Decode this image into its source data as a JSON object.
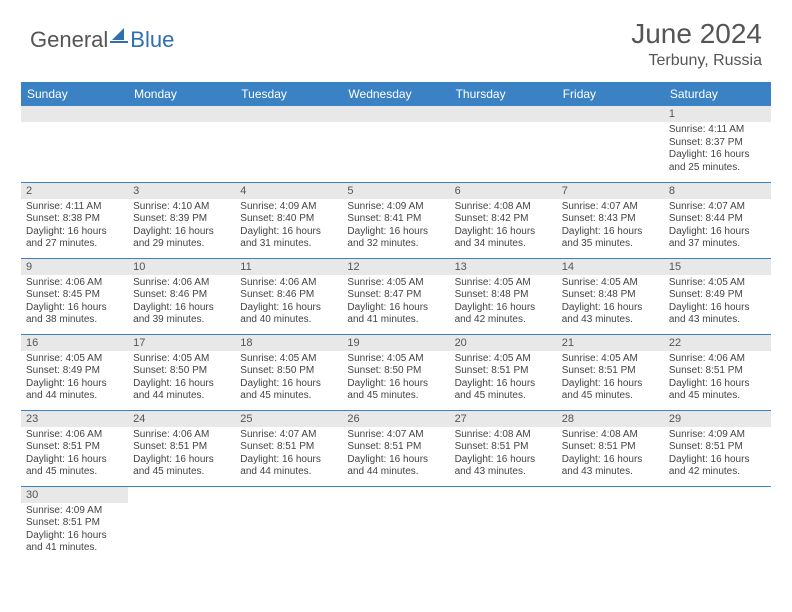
{
  "logo": {
    "gray": "General",
    "blue": "Blue"
  },
  "title": "June 2024",
  "location": "Terbuny, Russia",
  "colors": {
    "header_bg": "#3b82c4",
    "header_text": "#ffffff",
    "daynum_bg": "#e8e8e8",
    "border": "#3b82c4",
    "logo_gray": "#555555",
    "logo_blue": "#2f6fb0"
  },
  "day_headers": [
    "Sunday",
    "Monday",
    "Tuesday",
    "Wednesday",
    "Thursday",
    "Friday",
    "Saturday"
  ],
  "weeks": [
    [
      null,
      null,
      null,
      null,
      null,
      null,
      {
        "n": "1",
        "sr": "Sunrise: 4:11 AM",
        "ss": "Sunset: 8:37 PM",
        "dl": "Daylight: 16 hours and 25 minutes."
      }
    ],
    [
      {
        "n": "2",
        "sr": "Sunrise: 4:11 AM",
        "ss": "Sunset: 8:38 PM",
        "dl": "Daylight: 16 hours and 27 minutes."
      },
      {
        "n": "3",
        "sr": "Sunrise: 4:10 AM",
        "ss": "Sunset: 8:39 PM",
        "dl": "Daylight: 16 hours and 29 minutes."
      },
      {
        "n": "4",
        "sr": "Sunrise: 4:09 AM",
        "ss": "Sunset: 8:40 PM",
        "dl": "Daylight: 16 hours and 31 minutes."
      },
      {
        "n": "5",
        "sr": "Sunrise: 4:09 AM",
        "ss": "Sunset: 8:41 PM",
        "dl": "Daylight: 16 hours and 32 minutes."
      },
      {
        "n": "6",
        "sr": "Sunrise: 4:08 AM",
        "ss": "Sunset: 8:42 PM",
        "dl": "Daylight: 16 hours and 34 minutes."
      },
      {
        "n": "7",
        "sr": "Sunrise: 4:07 AM",
        "ss": "Sunset: 8:43 PM",
        "dl": "Daylight: 16 hours and 35 minutes."
      },
      {
        "n": "8",
        "sr": "Sunrise: 4:07 AM",
        "ss": "Sunset: 8:44 PM",
        "dl": "Daylight: 16 hours and 37 minutes."
      }
    ],
    [
      {
        "n": "9",
        "sr": "Sunrise: 4:06 AM",
        "ss": "Sunset: 8:45 PM",
        "dl": "Daylight: 16 hours and 38 minutes."
      },
      {
        "n": "10",
        "sr": "Sunrise: 4:06 AM",
        "ss": "Sunset: 8:46 PM",
        "dl": "Daylight: 16 hours and 39 minutes."
      },
      {
        "n": "11",
        "sr": "Sunrise: 4:06 AM",
        "ss": "Sunset: 8:46 PM",
        "dl": "Daylight: 16 hours and 40 minutes."
      },
      {
        "n": "12",
        "sr": "Sunrise: 4:05 AM",
        "ss": "Sunset: 8:47 PM",
        "dl": "Daylight: 16 hours and 41 minutes."
      },
      {
        "n": "13",
        "sr": "Sunrise: 4:05 AM",
        "ss": "Sunset: 8:48 PM",
        "dl": "Daylight: 16 hours and 42 minutes."
      },
      {
        "n": "14",
        "sr": "Sunrise: 4:05 AM",
        "ss": "Sunset: 8:48 PM",
        "dl": "Daylight: 16 hours and 43 minutes."
      },
      {
        "n": "15",
        "sr": "Sunrise: 4:05 AM",
        "ss": "Sunset: 8:49 PM",
        "dl": "Daylight: 16 hours and 43 minutes."
      }
    ],
    [
      {
        "n": "16",
        "sr": "Sunrise: 4:05 AM",
        "ss": "Sunset: 8:49 PM",
        "dl": "Daylight: 16 hours and 44 minutes."
      },
      {
        "n": "17",
        "sr": "Sunrise: 4:05 AM",
        "ss": "Sunset: 8:50 PM",
        "dl": "Daylight: 16 hours and 44 minutes."
      },
      {
        "n": "18",
        "sr": "Sunrise: 4:05 AM",
        "ss": "Sunset: 8:50 PM",
        "dl": "Daylight: 16 hours and 45 minutes."
      },
      {
        "n": "19",
        "sr": "Sunrise: 4:05 AM",
        "ss": "Sunset: 8:50 PM",
        "dl": "Daylight: 16 hours and 45 minutes."
      },
      {
        "n": "20",
        "sr": "Sunrise: 4:05 AM",
        "ss": "Sunset: 8:51 PM",
        "dl": "Daylight: 16 hours and 45 minutes."
      },
      {
        "n": "21",
        "sr": "Sunrise: 4:05 AM",
        "ss": "Sunset: 8:51 PM",
        "dl": "Daylight: 16 hours and 45 minutes."
      },
      {
        "n": "22",
        "sr": "Sunrise: 4:06 AM",
        "ss": "Sunset: 8:51 PM",
        "dl": "Daylight: 16 hours and 45 minutes."
      }
    ],
    [
      {
        "n": "23",
        "sr": "Sunrise: 4:06 AM",
        "ss": "Sunset: 8:51 PM",
        "dl": "Daylight: 16 hours and 45 minutes."
      },
      {
        "n": "24",
        "sr": "Sunrise: 4:06 AM",
        "ss": "Sunset: 8:51 PM",
        "dl": "Daylight: 16 hours and 45 minutes."
      },
      {
        "n": "25",
        "sr": "Sunrise: 4:07 AM",
        "ss": "Sunset: 8:51 PM",
        "dl": "Daylight: 16 hours and 44 minutes."
      },
      {
        "n": "26",
        "sr": "Sunrise: 4:07 AM",
        "ss": "Sunset: 8:51 PM",
        "dl": "Daylight: 16 hours and 44 minutes."
      },
      {
        "n": "27",
        "sr": "Sunrise: 4:08 AM",
        "ss": "Sunset: 8:51 PM",
        "dl": "Daylight: 16 hours and 43 minutes."
      },
      {
        "n": "28",
        "sr": "Sunrise: 4:08 AM",
        "ss": "Sunset: 8:51 PM",
        "dl": "Daylight: 16 hours and 43 minutes."
      },
      {
        "n": "29",
        "sr": "Sunrise: 4:09 AM",
        "ss": "Sunset: 8:51 PM",
        "dl": "Daylight: 16 hours and 42 minutes."
      }
    ],
    [
      {
        "n": "30",
        "sr": "Sunrise: 4:09 AM",
        "ss": "Sunset: 8:51 PM",
        "dl": "Daylight: 16 hours and 41 minutes."
      },
      null,
      null,
      null,
      null,
      null,
      null
    ]
  ]
}
